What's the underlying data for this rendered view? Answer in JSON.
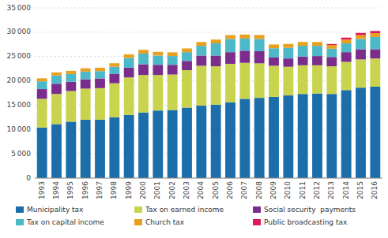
{
  "chart_data": {
    "type": "bar",
    "stacked": true,
    "grid": true,
    "legend": "bottom",
    "categories": [
      "1993",
      "1994",
      "1995",
      "1996",
      "1997",
      "1998",
      "1999",
      "2000",
      "2001",
      "2002",
      "2003",
      "2004",
      "2005",
      "2006",
      "2007",
      "2008",
      "2009",
      "2010",
      "2011",
      "2012",
      "2013",
      "2014",
      "2015",
      "2016"
    ],
    "series": [
      {
        "name": "Municipality tax",
        "color": "#1b6eaa",
        "values": [
          10400,
          11100,
          11600,
          12000,
          12000,
          12500,
          13000,
          13500,
          13900,
          14000,
          14500,
          14900,
          15100,
          15600,
          16300,
          16500,
          16700,
          17000,
          17300,
          17400,
          17300,
          18100,
          18600,
          18800
        ]
      },
      {
        "name": "Tax on earned income",
        "color": "#c8d44e",
        "values": [
          5900,
          6200,
          6300,
          6400,
          6500,
          7000,
          7700,
          7700,
          7300,
          7300,
          7700,
          8200,
          7900,
          7900,
          7400,
          7100,
          6400,
          5900,
          5900,
          5800,
          5700,
          5800,
          5800,
          5800
        ]
      },
      {
        "name": "Social security  payments",
        "color": "#7b2d8b",
        "values": [
          2000,
          2100,
          1900,
          1900,
          2000,
          1900,
          2000,
          2200,
          2100,
          2000,
          1900,
          2100,
          2200,
          2400,
          2500,
          2500,
          1700,
          1700,
          1800,
          1900,
          1900,
          2000,
          2100,
          1900
        ]
      },
      {
        "name": "Tax on capital income",
        "color": "#4db8c8",
        "values": [
          1600,
          1700,
          1600,
          1600,
          1500,
          1500,
          2000,
          2200,
          1900,
          1800,
          1800,
          2000,
          2500,
          2700,
          2500,
          2500,
          1900,
          2200,
          2200,
          2100,
          1700,
          1800,
          2100,
          2500
        ]
      },
      {
        "name": "Church tax",
        "color": "#e8a020",
        "values": [
          620,
          640,
          660,
          680,
          700,
          720,
          750,
          780,
          770,
          760,
          760,
          780,
          790,
          810,
          820,
          830,
          780,
          790,
          790,
          790,
          780,
          790,
          800,
          800
        ]
      },
      {
        "name": "Public broadcasting tax",
        "color": "#e0195a",
        "values": [
          0,
          0,
          0,
          0,
          0,
          0,
          0,
          0,
          0,
          0,
          0,
          0,
          0,
          0,
          0,
          0,
          0,
          0,
          0,
          0,
          200,
          400,
          450,
          450
        ]
      }
    ],
    "ylim": [
      0,
      35000
    ],
    "yticks": [
      0,
      {
        "value": 5000,
        "label": "5 000"
      },
      {
        "value": 10000,
        "label": "10 000"
      },
      {
        "value": 15000,
        "label": "15 000"
      },
      {
        "value": 20000,
        "label": "20 000"
      },
      {
        "value": 25000,
        "label": "25 000"
      },
      {
        "value": 30000,
        "label": "30 000"
      },
      {
        "value": 35000,
        "label": "35 000"
      }
    ]
  }
}
